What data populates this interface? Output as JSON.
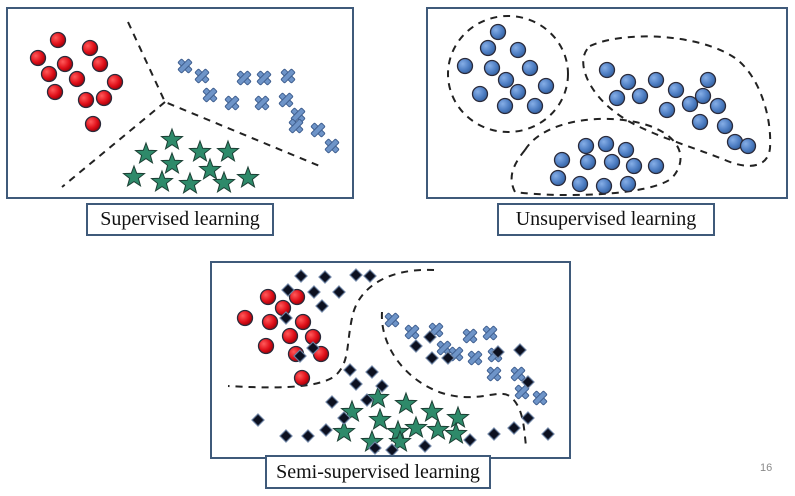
{
  "captions": {
    "supervised": "Supervised learning",
    "unsupervised": "Unsupervised learning",
    "semi_supervised": "Semi-supervised learning"
  },
  "page_number": "16",
  "colors": {
    "panel_border": "#3f5a7a",
    "red_circle": "#e0101a",
    "blue_cross": "#6e94c8",
    "green_star": "#2e8a6a",
    "blue_circle": "#4f7fc4",
    "black_diamond": "#0c1020",
    "boundary": "#222222"
  },
  "icons": {
    "class_a": "red-circle-icon",
    "class_b": "blue-cross-icon",
    "class_c": "green-star-icon",
    "unlabeled_cluster_point": "blue-circle-icon",
    "unlabeled_point": "black-diamond-icon"
  }
}
